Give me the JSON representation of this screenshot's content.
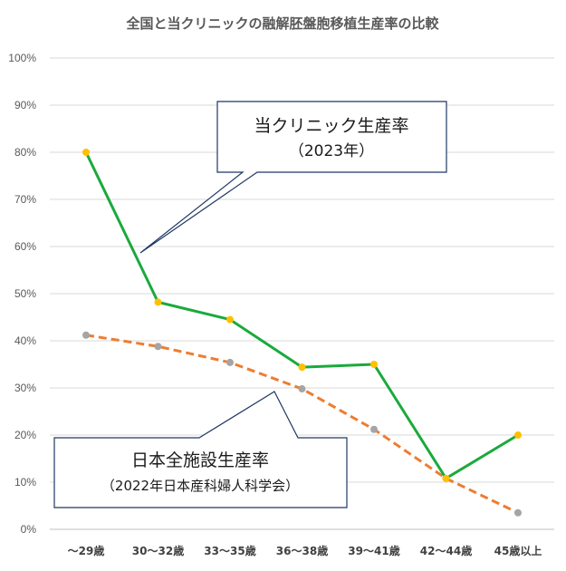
{
  "chart_data": {
    "type": "line",
    "title": "全国と当クリニックの融解胚盤胞移植生産率の比較",
    "categories": [
      "～29歳",
      "30～32歳",
      "33～35歳",
      "36～38歳",
      "39～41歳",
      "42～44歳",
      "45歳以上"
    ],
    "y_ticks": [
      "0%",
      "10%",
      "20%",
      "30%",
      "40%",
      "50%",
      "60%",
      "70%",
      "80%",
      "90%",
      "100%"
    ],
    "ylim": [
      0,
      100
    ],
    "grid": true,
    "series": [
      {
        "name": "当クリニック生産率",
        "name_line2": "（2023年）",
        "values": [
          80,
          48.2,
          44.5,
          34.4,
          35,
          10.8,
          20
        ],
        "line_color": "#1aaa3c",
        "marker_color": "#ffc000",
        "line_style": "solid"
      },
      {
        "name": "日本全施設生産率",
        "name_line2": "（2022年日本産科婦人科学会）",
        "values": [
          41.2,
          38.8,
          35.4,
          29.8,
          21.2,
          10.8,
          3.5
        ],
        "line_color": "#ed7d31",
        "marker_color": "#a5a5a5",
        "line_style": "dashed"
      }
    ]
  }
}
